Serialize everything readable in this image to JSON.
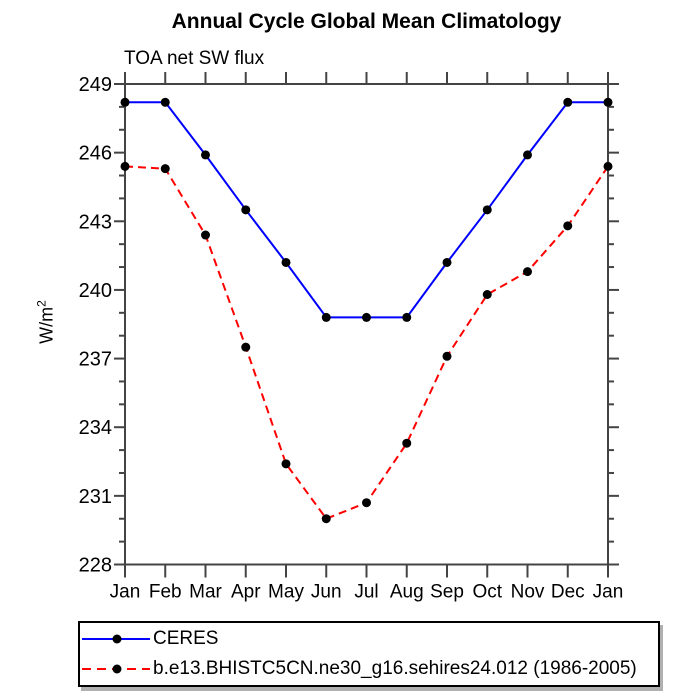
{
  "header": {
    "title": "Annual Cycle Global Mean Climatology",
    "subtitle": "TOA net SW flux"
  },
  "axes": {
    "y_label_base": "W/m",
    "y_label_sup": "2"
  },
  "legend": {
    "items": [
      {
        "label": "CERES",
        "color": "#0000ff",
        "style": "solid",
        "marker": "black-dot"
      },
      {
        "label": "b.e13.BHISTC5CN.ne30_g16.sehires24.012 (1986-2005)",
        "color": "#ff0000",
        "style": "dashed",
        "marker": "black-dot"
      }
    ]
  },
  "chart_data": {
    "type": "line",
    "title": "Annual Cycle Global Mean Climatology",
    "subtitle": "TOA net SW flux",
    "ylabel": "W/m^2",
    "xlabel": "",
    "categories": [
      "Jan",
      "Feb",
      "Mar",
      "Apr",
      "May",
      "Jun",
      "Jul",
      "Aug",
      "Sep",
      "Oct",
      "Nov",
      "Dec",
      "Jan"
    ],
    "series": [
      {
        "name": "CERES",
        "color": "#0000ff",
        "line_style": "solid",
        "marker": "filled-circle",
        "marker_color": "#000000",
        "values": [
          248.2,
          248.2,
          245.9,
          243.5,
          241.2,
          238.8,
          238.8,
          238.8,
          241.2,
          243.5,
          245.9,
          248.2,
          248.2
        ]
      },
      {
        "name": "b.e13.BHISTC5CN.ne30_g16.sehires24.012 (1986-2005)",
        "color": "#ff0000",
        "line_style": "dashed",
        "marker": "filled-circle",
        "marker_color": "#000000",
        "values": [
          245.4,
          245.3,
          242.4,
          237.5,
          232.4,
          230.0,
          230.7,
          233.3,
          237.1,
          239.8,
          240.8,
          242.8,
          245.4
        ]
      }
    ],
    "ylim": [
      228,
      249
    ],
    "ytick_major_step": 3,
    "ytick_minor_step": 1,
    "ytick_major_labels": [
      "228",
      "231",
      "234",
      "237",
      "240",
      "243",
      "246",
      "249"
    ],
    "grid": false,
    "axis_color": "#444444",
    "legend_position": "bottom-left-box"
  }
}
